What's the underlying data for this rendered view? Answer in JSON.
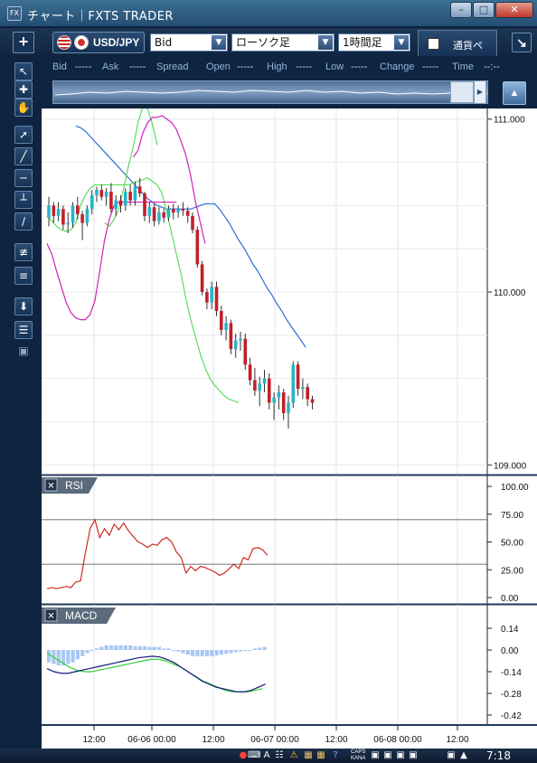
{
  "window": {
    "title": "チャート｜FXTS TRADER",
    "icon": "fx-app-icon"
  },
  "window_buttons": [
    "minimize-icon",
    "maximize-icon",
    "close-icon"
  ],
  "toolbar": {
    "currency_pair": "USD/JPY",
    "price_type": "Bid",
    "chart_type": "ローソク足",
    "timeframe": "1時間足",
    "tab_label": "通貨ペ"
  },
  "quote_bar": [
    {
      "label": "Bid",
      "value": "-----"
    },
    {
      "label": "Ask",
      "value": "-----"
    },
    {
      "label": "Spread",
      "value": ""
    },
    {
      "label": "Open",
      "value": "-----"
    },
    {
      "label": "High",
      "value": "-----"
    },
    {
      "label": "Low",
      "value": "-----"
    },
    {
      "label": "Change",
      "value": "-----"
    },
    {
      "label": "Time",
      "value": "--:--"
    }
  ],
  "sidebar_tools": [
    "cursor-arrow-icon",
    "cursor-crosshair-icon",
    "hand-pan-icon",
    "trendline-marker-icon",
    "trendline-icon",
    "horizontal-line-icon",
    "vertical-line-icon",
    "parallel-lines-icon",
    "fibonacci-fan-icon",
    "fibonacci-retracement-icon",
    "download-icon",
    "list-icon",
    "camera-icon"
  ],
  "indicators": {
    "rsi_label": "RSI",
    "macd_label": "MACD"
  },
  "chart_data": {
    "type": "candlestick",
    "price_axis": {
      "ticks": [
        "111.000",
        "110.000",
        "109.000"
      ],
      "range": [
        108.97,
        111.03
      ]
    },
    "time_axis": {
      "labels": [
        "12:00",
        "06-06 00:00",
        "12:00",
        "06-07 00:00",
        "12:00",
        "06-08 00:00",
        "12:00"
      ]
    },
    "candles": [
      [
        110.43,
        110.55,
        110.38,
        110.5
      ],
      [
        110.5,
        110.52,
        110.4,
        110.44
      ],
      [
        110.44,
        110.52,
        110.41,
        110.48
      ],
      [
        110.48,
        110.5,
        110.36,
        110.39
      ],
      [
        110.39,
        110.46,
        110.34,
        110.4
      ],
      [
        110.4,
        110.52,
        110.37,
        110.5
      ],
      [
        110.5,
        110.55,
        110.42,
        110.45
      ],
      [
        110.45,
        110.47,
        110.3,
        110.4
      ],
      [
        110.4,
        110.5,
        110.38,
        110.48
      ],
      [
        110.48,
        110.59,
        110.45,
        110.56
      ],
      [
        110.56,
        110.61,
        110.52,
        110.59
      ],
      [
        110.59,
        110.62,
        110.53,
        110.55
      ],
      [
        110.55,
        110.6,
        110.5,
        110.58
      ],
      [
        110.58,
        110.63,
        110.46,
        110.48
      ],
      [
        110.48,
        110.56,
        110.44,
        110.53
      ],
      [
        110.53,
        110.56,
        110.46,
        110.5
      ],
      [
        110.5,
        110.6,
        110.47,
        110.58
      ],
      [
        110.58,
        110.62,
        110.5,
        110.53
      ],
      [
        110.53,
        110.64,
        110.5,
        110.61
      ],
      [
        110.61,
        110.66,
        110.55,
        110.57
      ],
      [
        110.57,
        110.58,
        110.41,
        110.44
      ],
      [
        110.44,
        110.52,
        110.4,
        110.49
      ],
      [
        110.49,
        110.51,
        110.38,
        110.41
      ],
      [
        110.41,
        110.49,
        110.39,
        110.46
      ],
      [
        110.46,
        110.48,
        110.4,
        110.43
      ],
      [
        110.43,
        110.5,
        110.41,
        110.48
      ],
      [
        110.48,
        110.51,
        110.42,
        110.46
      ],
      [
        110.46,
        110.5,
        110.43,
        110.48
      ],
      [
        110.48,
        110.52,
        110.44,
        110.47
      ],
      [
        110.47,
        110.49,
        110.4,
        110.44
      ],
      [
        110.44,
        110.46,
        110.34,
        110.36
      ],
      [
        110.36,
        110.38,
        110.14,
        110.16
      ],
      [
        110.16,
        110.18,
        109.98,
        110.0
      ],
      [
        110.0,
        110.02,
        109.9,
        109.94
      ],
      [
        109.94,
        110.06,
        109.9,
        110.03
      ],
      [
        110.03,
        110.06,
        109.86,
        109.89
      ],
      [
        109.89,
        109.92,
        109.75,
        109.78
      ],
      [
        109.78,
        109.86,
        109.72,
        109.82
      ],
      [
        109.82,
        109.84,
        109.64,
        109.67
      ],
      [
        109.67,
        109.76,
        109.62,
        109.72
      ],
      [
        109.72,
        109.77,
        109.66,
        109.73
      ],
      [
        109.73,
        109.76,
        109.55,
        109.58
      ],
      [
        109.58,
        109.62,
        109.46,
        109.49
      ],
      [
        109.49,
        109.56,
        109.4,
        109.43
      ],
      [
        109.43,
        109.51,
        109.34,
        109.47
      ],
      [
        109.47,
        109.55,
        109.42,
        109.5
      ],
      [
        109.5,
        109.53,
        109.32,
        109.36
      ],
      [
        109.36,
        109.42,
        109.26,
        109.39
      ],
      [
        109.39,
        109.46,
        109.32,
        109.42
      ],
      [
        109.42,
        109.44,
        109.26,
        109.3
      ],
      [
        109.3,
        109.4,
        109.21,
        109.36
      ],
      [
        109.36,
        109.6,
        109.33,
        109.58
      ],
      [
        109.58,
        109.6,
        109.4,
        109.44
      ],
      [
        109.44,
        109.5,
        109.38,
        109.45
      ],
      [
        109.45,
        109.47,
        109.34,
        109.38
      ],
      [
        109.38,
        109.4,
        109.32,
        109.36
      ]
    ],
    "bollinger": {
      "sma": [
        110.96,
        110.95,
        110.93,
        110.9,
        110.87,
        110.84,
        110.81,
        110.78,
        110.75,
        110.72,
        110.69,
        110.66,
        110.63,
        110.6,
        110.57,
        110.54,
        110.52,
        110.5,
        110.49,
        110.48,
        110.48,
        110.48,
        110.48,
        110.48,
        110.48,
        110.49,
        110.5,
        110.51,
        110.51,
        110.51,
        110.48,
        110.44,
        110.4,
        110.35,
        110.3,
        110.26,
        110.21,
        110.16,
        110.12,
        110.07,
        110.02,
        109.98,
        109.93,
        109.89,
        109.84,
        109.8,
        109.76,
        109.72,
        109.68
      ],
      "upper1": [
        110.44,
        110.41,
        110.38,
        110.36,
        110.35,
        110.36,
        110.4,
        110.5,
        110.56,
        110.6,
        110.62,
        110.62,
        110.62,
        110.62,
        110.62,
        110.62,
        110.62,
        110.62,
        110.63,
        110.64,
        110.65,
        110.66,
        110.64,
        110.62,
        110.57,
        110.46,
        110.34,
        110.22,
        110.1,
        109.96,
        109.84,
        109.74,
        109.64,
        109.56,
        109.5,
        109.46,
        109.43,
        109.4,
        109.38,
        109.37,
        109.36
      ],
      "lower1": [
        110.4,
        110.38,
        110.42,
        110.48,
        110.6,
        110.73,
        110.84,
        110.98,
        111.07,
        111.06,
        110.97,
        110.85
      ],
      "upper2": [
        110.28,
        110.22,
        110.12,
        110.03,
        109.94,
        109.88,
        109.85,
        109.84,
        109.84,
        109.87,
        109.95,
        110.12,
        110.3,
        110.42,
        110.5,
        110.52,
        110.52,
        110.52,
        110.52,
        110.52,
        110.52,
        110.52,
        110.52,
        110.52,
        110.52,
        110.52,
        110.52,
        110.52
      ],
      "lower2": [
        110.78,
        110.82,
        110.92,
        110.98,
        111.01,
        111.01,
        111.02,
        111.0,
        110.98,
        110.94,
        110.87,
        110.79,
        110.67,
        110.52,
        110.4,
        110.28
      ]
    },
    "rsi": {
      "ticks": [
        "100.00",
        "75.00",
        "50.00",
        "25.00",
        "0.00"
      ],
      "levels": [
        70,
        30
      ],
      "values": [
        8,
        9,
        8,
        9,
        10,
        9,
        14,
        15,
        40,
        62,
        70,
        54,
        62,
        56,
        66,
        61,
        67,
        60,
        55,
        50,
        48,
        45,
        48,
        47,
        52,
        54,
        50,
        41,
        36,
        22,
        28,
        24,
        28,
        27,
        25,
        23,
        20,
        22,
        26,
        30,
        26,
        36,
        34,
        44,
        45,
        43,
        38
      ]
    },
    "macd": {
      "ticks": [
        "0.14",
        "0.00",
        "-0.14",
        "-0.28",
        "-0.42"
      ],
      "histogram": [
        -0.08,
        -0.09,
        -0.1,
        -0.1,
        -0.09,
        -0.08,
        -0.06,
        -0.04,
        -0.02,
        0,
        0.01,
        0.02,
        0.03,
        0.03,
        0.03,
        0.03,
        0.03,
        0.03,
        0.025,
        0.025,
        0.025,
        0.02,
        0.02,
        0.02,
        0.01,
        0.01,
        0,
        -0.01,
        -0.02,
        -0.03,
        -0.04,
        -0.04,
        -0.04,
        -0.04,
        -0.04,
        -0.035,
        -0.03,
        -0.025,
        -0.02,
        -0.015,
        -0.01,
        -0.005,
        0,
        0.01,
        0.015,
        0.02
      ],
      "macd_line": [
        -0.12,
        -0.14,
        -0.15,
        -0.15,
        -0.14,
        -0.13,
        -0.12,
        -0.11,
        -0.1,
        -0.09,
        -0.08,
        -0.07,
        -0.06,
        -0.05,
        -0.045,
        -0.04,
        -0.045,
        -0.06,
        -0.08,
        -0.11,
        -0.14,
        -0.17,
        -0.2,
        -0.22,
        -0.24,
        -0.25,
        -0.26,
        -0.27,
        -0.27,
        -0.26,
        -0.24,
        -0.22
      ],
      "signal_line": [
        -0.02,
        -0.05,
        -0.08,
        -0.11,
        -0.13,
        -0.14,
        -0.14,
        -0.13,
        -0.12,
        -0.11,
        -0.1,
        -0.09,
        -0.08,
        -0.07,
        -0.06,
        -0.06,
        -0.07,
        -0.09,
        -0.11,
        -0.14,
        -0.17,
        -0.2,
        -0.22,
        -0.24,
        -0.26,
        -0.27,
        -0.27,
        -0.27,
        -0.26,
        -0.25
      ]
    }
  },
  "taskbar": {
    "tray_icons": [
      "record-icon",
      "keyboard-icon",
      "a-mode-icon",
      "network-icon",
      "security-icon",
      "folder-icon",
      "help-icon",
      "tray-icon-1",
      "tray-icon-2",
      "tray-icon-3",
      "tray-icon-4",
      "tray-icon-5",
      "tray-icon-6"
    ],
    "caps_label": "CAPS",
    "kana_label": "KANA",
    "clock": "7:18"
  }
}
